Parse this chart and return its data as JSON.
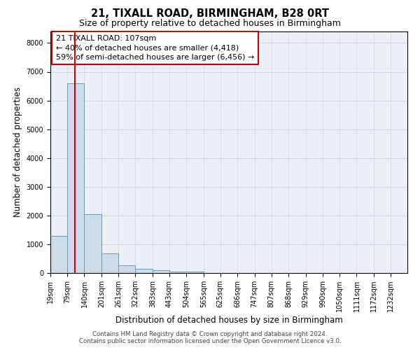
{
  "title": "21, TIXALL ROAD, BIRMINGHAM, B28 0RT",
  "subtitle": "Size of property relative to detached houses in Birmingham",
  "xlabel": "Distribution of detached houses by size in Birmingham",
  "ylabel": "Number of detached properties",
  "bins": [
    "19sqm",
    "79sqm",
    "140sqm",
    "201sqm",
    "261sqm",
    "322sqm",
    "383sqm",
    "443sqm",
    "504sqm",
    "565sqm",
    "625sqm",
    "686sqm",
    "747sqm",
    "807sqm",
    "868sqm",
    "929sqm",
    "990sqm",
    "1050sqm",
    "1111sqm",
    "1172sqm",
    "1232sqm"
  ],
  "bin_edges": [
    19,
    79,
    140,
    201,
    261,
    322,
    383,
    443,
    504,
    565,
    625,
    686,
    747,
    807,
    868,
    929,
    990,
    1050,
    1111,
    1172,
    1232
  ],
  "bar_heights": [
    1300,
    6600,
    2050,
    680,
    280,
    150,
    90,
    55,
    55,
    0,
    0,
    0,
    0,
    0,
    0,
    0,
    0,
    0,
    0,
    0
  ],
  "bar_color": "#ccdce8",
  "bar_edge_color": "#6699bb",
  "bar_edge_width": 0.7,
  "vline_x": 107,
  "vline_color": "#cc0000",
  "ylim": [
    0,
    8400
  ],
  "yticks": [
    0,
    1000,
    2000,
    3000,
    4000,
    5000,
    6000,
    7000,
    8000
  ],
  "annotation_text": "21 TIXALL ROAD: 107sqm\n← 40% of detached houses are smaller (4,418)\n59% of semi-detached houses are larger (6,456) →",
  "annotation_fontsize": 8,
  "annotation_box_color": "#ffffff",
  "annotation_box_edge_color": "#cc0000",
  "grid_color": "#c8d8e8",
  "background_color": "#eaf0f6",
  "footer_line1": "Contains HM Land Registry data © Crown copyright and database right 2024.",
  "footer_line2": "Contains public sector information licensed under the Open Government Licence v3.0.",
  "title_fontsize": 10.5,
  "subtitle_fontsize": 9,
  "xlabel_fontsize": 8.5,
  "ylabel_fontsize": 8.5,
  "tick_fontsize": 7
}
